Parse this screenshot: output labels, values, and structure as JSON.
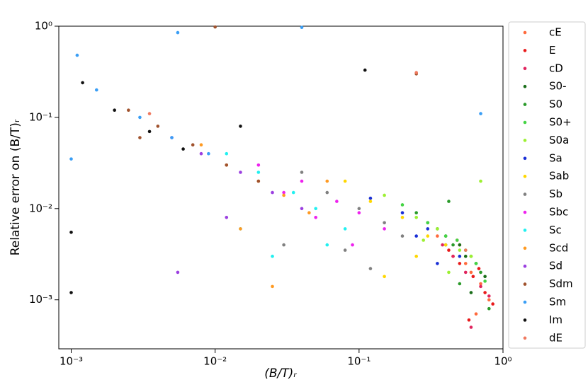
{
  "chart_data": {
    "type": "scatter",
    "xlabel": "(B/T)ᵣ",
    "ylabel": "Relative error on (B/T)ᵣ",
    "log_x": true,
    "log_y": true,
    "xlim": [
      0.00082,
      1
    ],
    "ylim": [
      0.00029,
      1
    ],
    "xticks": [
      {
        "value": 0.001,
        "label": "10⁻³"
      },
      {
        "value": 0.01,
        "label": "10⁻²"
      },
      {
        "value": 0.1,
        "label": "10⁻¹"
      },
      {
        "value": 1,
        "label": "10⁰"
      }
    ],
    "yticks": [
      {
        "value": 0.001,
        "label": "10⁻³"
      },
      {
        "value": 0.01,
        "label": "10⁻²"
      },
      {
        "value": 0.1,
        "label": "10⁻¹"
      },
      {
        "value": 1,
        "label": "10⁰"
      }
    ],
    "legend_position": "outside-right",
    "series": [
      {
        "name": "cE",
        "color": "#ff6a3d",
        "x": [
          0.45,
          0.6,
          0.7,
          0.5,
          0.8,
          0.55,
          0.35,
          0.65
        ],
        "values": [
          0.003,
          0.002,
          0.0015,
          0.004,
          0.001,
          0.0025,
          0.005,
          0.0007
        ]
      },
      {
        "name": "E",
        "color": "#e8191a",
        "x": [
          0.5,
          0.62,
          0.75,
          0.42,
          0.85,
          0.58,
          0.68,
          0.48
        ],
        "values": [
          0.0025,
          0.0018,
          0.0012,
          0.0035,
          0.0009,
          0.0006,
          0.0022,
          0.0045
        ]
      },
      {
        "name": "cD",
        "color": "#e0245e",
        "x": [
          0.55,
          0.7,
          0.45,
          0.8,
          0.6,
          0.38
        ],
        "values": [
          0.002,
          0.0014,
          0.003,
          0.0011,
          0.0005,
          0.004
        ]
      },
      {
        "name": "S0-",
        "color": "#1a6e1a",
        "x": [
          0.4,
          0.55,
          0.65,
          0.3,
          0.75,
          0.5,
          0.6
        ],
        "values": [
          0.005,
          0.003,
          0.0025,
          0.007,
          0.0018,
          0.004,
          0.0012
        ]
      },
      {
        "name": "S0",
        "color": "#2a9a2a",
        "x": [
          0.35,
          0.45,
          0.6,
          0.25,
          0.7,
          0.5,
          0.8,
          0.42
        ],
        "values": [
          0.006,
          0.004,
          0.003,
          0.009,
          0.002,
          0.0015,
          0.0008,
          0.012
        ]
      },
      {
        "name": "S0+",
        "color": "#44d444",
        "x": [
          0.3,
          0.4,
          0.55,
          0.2,
          0.65,
          0.48,
          0.75
        ],
        "values": [
          0.007,
          0.005,
          0.0035,
          0.011,
          0.0025,
          0.0045,
          0.0016
        ]
      },
      {
        "name": "S0a",
        "color": "#9cf032",
        "x": [
          0.25,
          0.35,
          0.5,
          0.15,
          0.6,
          0.42,
          0.7,
          0.28
        ],
        "values": [
          0.008,
          0.006,
          0.0035,
          0.014,
          0.003,
          0.002,
          0.02,
          0.0045
        ]
      },
      {
        "name": "Sa",
        "color": "#1a2fd6",
        "x": [
          0.2,
          0.3,
          0.4,
          0.12,
          0.5,
          0.35,
          0.25
        ],
        "values": [
          0.009,
          0.006,
          0.004,
          0.013,
          0.003,
          0.0025,
          0.005
        ]
      },
      {
        "name": "Sab",
        "color": "#ffd700",
        "x": [
          0.12,
          0.2,
          0.3,
          0.08,
          0.4,
          0.15,
          0.25
        ],
        "values": [
          0.012,
          0.008,
          0.005,
          0.02,
          0.004,
          0.0018,
          0.003
        ]
      },
      {
        "name": "Sb",
        "color": "#808080",
        "x": [
          0.06,
          0.1,
          0.15,
          0.04,
          0.2,
          0.08,
          0.12,
          0.03
        ],
        "values": [
          0.015,
          0.01,
          0.007,
          0.025,
          0.005,
          0.0035,
          0.0022,
          0.004
        ]
      },
      {
        "name": "Sbc",
        "color": "#ee22ee",
        "x": [
          0.04,
          0.07,
          0.1,
          0.02,
          0.15,
          0.05,
          0.09,
          0.03
        ],
        "values": [
          0.02,
          0.012,
          0.009,
          0.03,
          0.006,
          0.008,
          0.004,
          0.015
        ]
      },
      {
        "name": "Sc",
        "color": "#22f0f0",
        "x": [
          0.02,
          0.035,
          0.05,
          0.012,
          0.08,
          0.025,
          0.015,
          0.06
        ],
        "values": [
          0.025,
          0.015,
          0.01,
          0.04,
          0.006,
          0.003,
          0.006,
          0.004
        ]
      },
      {
        "name": "Scd",
        "color": "#ff9a22",
        "x": [
          0.012,
          0.02,
          0.03,
          0.008,
          0.045,
          0.015,
          0.025,
          0.06
        ],
        "values": [
          0.03,
          0.02,
          0.014,
          0.05,
          0.009,
          0.006,
          0.0014,
          0.02
        ]
      },
      {
        "name": "Sd",
        "color": "#9b3fe0",
        "x": [
          0.008,
          0.015,
          0.025,
          0.005,
          0.04,
          0.0055,
          0.012
        ],
        "values": [
          0.04,
          0.025,
          0.015,
          0.06,
          0.01,
          0.002,
          0.008
        ]
      },
      {
        "name": "Sdm",
        "color": "#a0522d",
        "x": [
          0.004,
          0.007,
          0.012,
          0.0025,
          0.02,
          0.01,
          0.25,
          0.003
        ],
        "values": [
          0.08,
          0.05,
          0.03,
          0.12,
          0.02,
          0.98,
          0.3,
          0.06
        ]
      },
      {
        "name": "Sm",
        "color": "#3a9ef5",
        "x": [
          0.003,
          0.005,
          0.009,
          0.0015,
          0.001,
          0.0011,
          0.0055,
          0.04,
          0.7
        ],
        "values": [
          0.1,
          0.06,
          0.04,
          0.2,
          0.035,
          0.48,
          0.85,
          0.97,
          0.11
        ]
      },
      {
        "name": "Im",
        "color": "#111111",
        "x": [
          0.002,
          0.0035,
          0.006,
          0.0012,
          0.001,
          0.001,
          0.11,
          0.015
        ],
        "values": [
          0.12,
          0.07,
          0.045,
          0.24,
          0.0055,
          0.0012,
          0.33,
          0.08
        ]
      },
      {
        "name": "dE",
        "color": "#f07a60",
        "x": [
          0.25,
          0.0035,
          0.55
        ],
        "values": [
          0.31,
          0.11,
          0.0035
        ]
      }
    ]
  }
}
